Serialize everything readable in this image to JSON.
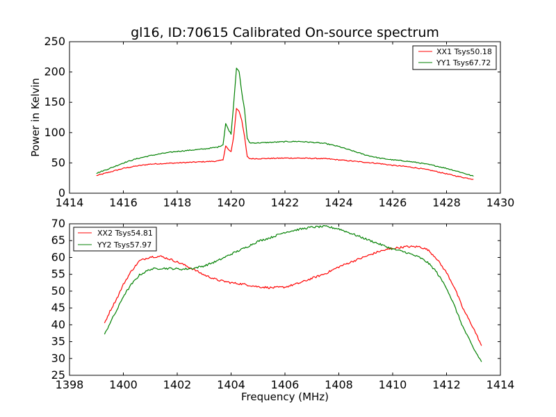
{
  "figure": {
    "title": "gl16, ID:70615 Calibrated On-source spectrum"
  },
  "chart_data": [
    {
      "type": "line",
      "title": "gl16, ID:70615 Calibrated On-source spectrum",
      "xlabel": "",
      "ylabel": "Power in Kelvin",
      "xlim": [
        1414,
        1430
      ],
      "ylim": [
        0,
        250
      ],
      "x_ticks": [
        "1414",
        "1416",
        "1418",
        "1420",
        "1422",
        "1424",
        "1426",
        "1428",
        "1430"
      ],
      "y_ticks": [
        "0",
        "50",
        "100",
        "150",
        "200",
        "250"
      ],
      "grid": false,
      "legend_position": "top-right",
      "series": [
        {
          "name": "XX1 Tsys50.18",
          "color": "#ff0000",
          "x": [
            1415.0,
            1415.5,
            1416.0,
            1416.5,
            1417.0,
            1417.5,
            1418.0,
            1418.5,
            1419.0,
            1419.5,
            1419.7,
            1419.8,
            1419.9,
            1420.0,
            1420.1,
            1420.2,
            1420.3,
            1420.4,
            1420.5,
            1420.6,
            1420.7,
            1421.0,
            1421.5,
            1422.0,
            1422.5,
            1423.0,
            1423.5,
            1424.0,
            1424.5,
            1425.0,
            1425.5,
            1426.0,
            1426.5,
            1427.0,
            1427.5,
            1428.0,
            1428.5,
            1429.0
          ],
          "y": [
            29,
            35,
            41,
            45,
            48,
            49,
            50,
            51,
            52,
            53,
            55,
            78,
            72,
            68,
            95,
            140,
            135,
            120,
            93,
            60,
            57,
            57,
            57.5,
            58,
            58,
            57.5,
            57,
            55,
            53,
            51,
            49,
            46,
            44,
            41,
            37,
            32,
            27,
            23
          ],
          "noise": 0.8
        },
        {
          "name": "YY1 Tsys67.72",
          "color": "#008000",
          "x": [
            1415.0,
            1415.5,
            1416.0,
            1416.5,
            1417.0,
            1417.5,
            1418.0,
            1418.5,
            1419.0,
            1419.5,
            1419.7,
            1419.8,
            1419.9,
            1420.0,
            1420.1,
            1420.2,
            1420.3,
            1420.4,
            1420.5,
            1420.6,
            1420.7,
            1421.0,
            1421.5,
            1422.0,
            1422.5,
            1423.0,
            1423.5,
            1424.0,
            1424.5,
            1425.0,
            1425.5,
            1426.0,
            1426.5,
            1427.0,
            1427.5,
            1428.0,
            1428.5,
            1429.0
          ],
          "y": [
            33,
            41,
            50,
            57,
            62,
            66,
            69,
            71,
            73,
            76,
            80,
            115,
            105,
            98,
            150,
            207,
            200,
            165,
            138,
            90,
            83,
            83,
            84,
            85,
            85.5,
            84,
            82,
            77,
            70,
            63,
            58,
            55,
            53,
            50,
            46,
            41,
            35,
            28
          ],
          "noise": 0.8
        }
      ]
    },
    {
      "type": "line",
      "title": "",
      "xlabel": "Frequency (MHz)",
      "ylabel": "",
      "xlim": [
        1398,
        1414
      ],
      "ylim": [
        25,
        70
      ],
      "x_ticks": [
        "1398",
        "1400",
        "1402",
        "1404",
        "1406",
        "1408",
        "1410",
        "1412",
        "1414"
      ],
      "y_ticks": [
        "25",
        "30",
        "35",
        "40",
        "45",
        "50",
        "55",
        "60",
        "65",
        "70"
      ],
      "grid": false,
      "legend_position": "top-left",
      "series": [
        {
          "name": "XX2 Tsys54.81",
          "color": "#ff0000",
          "x": [
            1399.3,
            1399.5,
            1399.8,
            1400.0,
            1400.3,
            1400.6,
            1401.0,
            1401.4,
            1401.8,
            1402.2,
            1402.6,
            1403.0,
            1403.5,
            1404.0,
            1404.5,
            1405.0,
            1405.5,
            1406.0,
            1406.5,
            1407.0,
            1407.5,
            1408.0,
            1408.5,
            1409.0,
            1409.5,
            1410.0,
            1410.5,
            1411.0,
            1411.3,
            1411.6,
            1412.0,
            1412.3,
            1412.6,
            1413.0,
            1413.3
          ],
          "y": [
            40.5,
            44,
            48.5,
            52,
            56,
            59,
            60.2,
            60.3,
            59.3,
            58,
            56.5,
            54.8,
            53.3,
            52.5,
            52,
            51.3,
            51,
            51.2,
            52.3,
            53.8,
            55.2,
            57.2,
            58.8,
            60.3,
            61.8,
            62.7,
            63.2,
            63.2,
            62.3,
            60,
            55.5,
            51,
            45,
            39,
            33.8
          ],
          "noise": 0.3
        },
        {
          "name": "YY2 Tsys57.97",
          "color": "#008000",
          "x": [
            1399.3,
            1399.5,
            1399.8,
            1400.0,
            1400.3,
            1400.6,
            1401.0,
            1401.4,
            1401.8,
            1402.2,
            1402.6,
            1403.0,
            1403.5,
            1404.0,
            1404.5,
            1405.0,
            1405.5,
            1406.0,
            1406.5,
            1407.0,
            1407.5,
            1408.0,
            1408.5,
            1409.0,
            1409.5,
            1410.0,
            1410.5,
            1411.0,
            1411.3,
            1411.6,
            1412.0,
            1412.3,
            1412.6,
            1413.0,
            1413.3
          ],
          "y": [
            37,
            40.5,
            45,
            48.5,
            52,
            54.8,
            56.5,
            56.8,
            56.7,
            56.5,
            56.8,
            57.5,
            59,
            61,
            62.8,
            64.8,
            66,
            67.5,
            68.3,
            69,
            69.2,
            68.5,
            67,
            65.5,
            64,
            62.5,
            61.5,
            60,
            58.5,
            56,
            51,
            45.5,
            39.5,
            33,
            29
          ],
          "noise": 0.3
        }
      ]
    }
  ]
}
